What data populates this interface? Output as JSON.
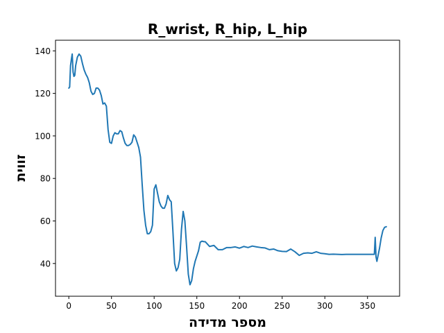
{
  "chart_data": {
    "type": "line",
    "title": "R_wrist, R_hip, L_hip",
    "xlabel": "מספר מדידה",
    "ylabel": "זווית",
    "xlim": [
      -15.6,
      387.6
    ],
    "ylim": [
      24.6,
      145.0
    ],
    "xticks": [
      0,
      50,
      100,
      150,
      200,
      250,
      300,
      350
    ],
    "yticks": [
      40,
      60,
      80,
      100,
      120,
      140
    ],
    "grid": false,
    "legend": "none",
    "colors": {
      "line": "#1f77b4",
      "axes": "#000000",
      "background": "#ffffff"
    },
    "series": [
      {
        "x": [
          0,
          1,
          2,
          3,
          4,
          5,
          6,
          7,
          8,
          9,
          10,
          12,
          14,
          16,
          18,
          20,
          22,
          24,
          26,
          28,
          30,
          32,
          34,
          36,
          38,
          40,
          42,
          44,
          46,
          48,
          50,
          52,
          54,
          56,
          58,
          60,
          62,
          64,
          66,
          68,
          70,
          72,
          74,
          76,
          78,
          80,
          82,
          84,
          86,
          88,
          90,
          92,
          94,
          96,
          98,
          100,
          102,
          104,
          106,
          108,
          110,
          112,
          114,
          116,
          118,
          120,
          122,
          124,
          126,
          128,
          130,
          132,
          134,
          136,
          138,
          140,
          142,
          144,
          146,
          148,
          150,
          152,
          154,
          156,
          158,
          160,
          165,
          170,
          175,
          180,
          185,
          190,
          195,
          200,
          205,
          210,
          215,
          220,
          225,
          230,
          235,
          240,
          245,
          250,
          255,
          260,
          265,
          270,
          275,
          280,
          285,
          290,
          295,
          300,
          305,
          310,
          315,
          320,
          325,
          330,
          335,
          340,
          345,
          350,
          355,
          358,
          359,
          360,
          361,
          362,
          364,
          366,
          368,
          370,
          372
        ],
        "y": [
          122.5,
          123,
          133,
          136,
          138.5,
          130,
          128,
          128.5,
          133,
          135,
          137,
          138.5,
          137.5,
          134,
          131,
          129,
          127.5,
          125,
          121,
          119.5,
          120,
          122.5,
          122.5,
          121.5,
          119,
          115,
          115.5,
          114,
          103,
          97,
          96.5,
          100,
          101.5,
          101,
          101,
          102.5,
          102,
          99,
          96.5,
          95.5,
          95.5,
          96,
          97,
          100.5,
          99.5,
          97,
          94.5,
          90,
          77,
          65,
          58,
          54,
          54,
          55,
          58,
          75,
          77,
          73,
          69,
          67,
          66,
          66,
          68,
          72,
          70,
          69,
          55,
          40,
          36.5,
          38,
          42,
          56,
          64.5,
          60,
          48,
          35,
          30,
          32,
          37.5,
          41,
          43.5,
          46,
          50,
          50.5,
          50.3,
          50.2,
          48,
          48.5,
          46.5,
          46.5,
          47.5,
          47.5,
          47.8,
          47.2,
          48,
          47.5,
          48.2,
          47.8,
          47.5,
          47.3,
          46.5,
          46.8,
          46,
          45.7,
          45.6,
          46.8,
          45.5,
          43.8,
          44.8,
          45,
          44.8,
          45.5,
          44.8,
          44.6,
          44.3,
          44.4,
          44.3,
          44.2,
          44.3,
          44.3,
          44.3,
          44.3,
          44.3,
          44.3,
          44.3,
          44.3,
          52.3,
          43,
          41,
          43,
          47,
          52,
          55.5,
          57,
          57.3
        ]
      }
    ]
  }
}
